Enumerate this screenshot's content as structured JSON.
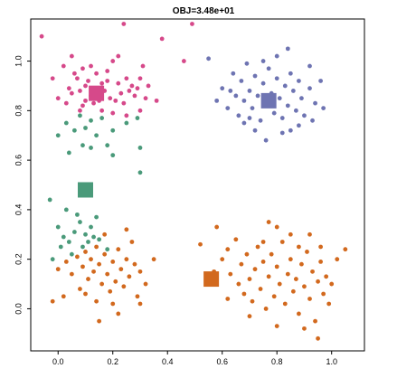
{
  "chart_data": {
    "type": "scatter",
    "title": "OBJ=3.48e+01",
    "xlabel": "",
    "ylabel": "",
    "xlim": [
      -0.1,
      1.12
    ],
    "ylim": [
      -0.17,
      1.17
    ],
    "x_ticks": [
      0.0,
      0.2,
      0.4,
      0.6,
      0.8,
      1.0
    ],
    "x_tick_labels": [
      "0.0",
      "0.2",
      "0.4",
      "0.6",
      "0.8",
      "1.0"
    ],
    "y_ticks": [
      0.0,
      0.2,
      0.4,
      0.6,
      0.8,
      1.0
    ],
    "y_tick_labels": [
      "0.0",
      "0.2",
      "0.4",
      "0.6",
      "0.8",
      "1.0"
    ],
    "grid": false,
    "legend": "none",
    "clusters": [
      {
        "color": "#d6498a",
        "centroid": [
          0.14,
          0.87
        ],
        "points": [
          [
            -0.06,
            1.1
          ],
          [
            0.02,
            0.98
          ],
          [
            0.05,
            1.02
          ],
          [
            0.06,
            0.95
          ],
          [
            0.07,
            0.93
          ],
          [
            0.08,
            0.88
          ],
          [
            0.09,
            0.97
          ],
          [
            0.1,
            0.9
          ],
          [
            0.1,
            0.84
          ],
          [
            0.11,
            0.92
          ],
          [
            0.12,
            0.86
          ],
          [
            0.13,
            0.83
          ],
          [
            0.14,
            0.95
          ],
          [
            0.15,
            0.89
          ],
          [
            0.16,
            0.91
          ],
          [
            0.17,
            0.88
          ],
          [
            0.18,
            0.92
          ],
          [
            0.19,
            0.85
          ],
          [
            0.2,
            1.0
          ],
          [
            0.22,
            1.02
          ],
          [
            0.23,
            0.87
          ],
          [
            0.24,
            0.83
          ],
          [
            0.25,
            0.93
          ],
          [
            0.27,
            0.9
          ],
          [
            0.28,
            0.86
          ],
          [
            0.3,
            0.93
          ],
          [
            0.32,
            0.85
          ],
          [
            0.33,
            0.9
          ],
          [
            0.0,
            0.85
          ],
          [
            0.03,
            0.83
          ],
          [
            0.04,
            0.89
          ],
          [
            -0.02,
            0.93
          ],
          [
            0.08,
            0.8
          ],
          [
            0.16,
            0.8
          ],
          [
            0.2,
            0.79
          ],
          [
            0.25,
            0.78
          ],
          [
            0.3,
            0.8
          ],
          [
            0.12,
            0.98
          ],
          [
            0.18,
            0.96
          ],
          [
            0.22,
            0.91
          ],
          [
            0.26,
            0.88
          ],
          [
            0.05,
            0.87
          ],
          [
            0.09,
            0.82
          ],
          [
            0.15,
            0.84
          ],
          [
            0.21,
            0.84
          ],
          [
            0.29,
            0.89
          ],
          [
            0.24,
            1.15
          ],
          [
            0.36,
            0.84
          ],
          [
            0.49,
            1.15
          ],
          [
            0.38,
            1.09
          ],
          [
            0.46,
            1.0
          ],
          [
            0.31,
            0.98
          ]
        ]
      },
      {
        "color": "#4a9a7a",
        "centroid": [
          0.1,
          0.48
        ],
        "points": [
          [
            0.0,
            0.7
          ],
          [
            0.03,
            0.75
          ],
          [
            0.06,
            0.72
          ],
          [
            0.08,
            0.78
          ],
          [
            0.1,
            0.73
          ],
          [
            0.12,
            0.76
          ],
          [
            0.14,
            0.7
          ],
          [
            0.16,
            0.77
          ],
          [
            0.2,
            0.72
          ],
          [
            0.25,
            0.75
          ],
          [
            0.29,
            0.77
          ],
          [
            0.09,
            0.66
          ],
          [
            0.12,
            0.65
          ],
          [
            0.18,
            0.66
          ],
          [
            0.3,
            0.65
          ],
          [
            0.04,
            0.63
          ],
          [
            0.2,
            0.62
          ],
          [
            0.3,
            0.55
          ],
          [
            0.0,
            0.33
          ],
          [
            0.02,
            0.29
          ],
          [
            0.04,
            0.27
          ],
          [
            0.06,
            0.31
          ],
          [
            0.08,
            0.35
          ],
          [
            0.1,
            0.3
          ],
          [
            0.11,
            0.27
          ],
          [
            0.12,
            0.33
          ],
          [
            0.13,
            0.29
          ],
          [
            0.14,
            0.37
          ],
          [
            0.05,
            0.22
          ],
          [
            0.09,
            0.25
          ],
          [
            0.07,
            0.38
          ],
          [
            0.03,
            0.4
          ],
          [
            -0.03,
            0.44
          ],
          [
            0.18,
            0.24
          ],
          [
            -0.02,
            0.2
          ],
          [
            0.01,
            0.25
          ],
          [
            0.15,
            0.28
          ]
        ]
      },
      {
        "color": "#d2691e",
        "centroid": [
          0.56,
          0.12
        ],
        "points": [
          [
            0.0,
            0.16
          ],
          [
            0.03,
            0.19
          ],
          [
            0.05,
            0.14
          ],
          [
            0.07,
            0.21
          ],
          [
            0.09,
            0.17
          ],
          [
            0.1,
            0.23
          ],
          [
            0.11,
            0.12
          ],
          [
            0.12,
            0.2
          ],
          [
            0.13,
            0.15
          ],
          [
            0.14,
            0.25
          ],
          [
            0.15,
            0.18
          ],
          [
            0.16,
            0.1
          ],
          [
            0.17,
            0.22
          ],
          [
            0.18,
            0.14
          ],
          [
            0.19,
            0.07
          ],
          [
            0.2,
            0.19
          ],
          [
            0.21,
            0.11
          ],
          [
            0.22,
            0.24
          ],
          [
            0.23,
            0.16
          ],
          [
            0.24,
            0.09
          ],
          [
            0.25,
            0.2
          ],
          [
            0.26,
            0.13
          ],
          [
            0.27,
            0.27
          ],
          [
            0.28,
            0.18
          ],
          [
            0.29,
            0.05
          ],
          [
            0.3,
            0.15
          ],
          [
            0.32,
            0.1
          ],
          [
            0.08,
            0.08
          ],
          [
            0.1,
            0.06
          ],
          [
            0.14,
            0.03
          ],
          [
            0.2,
            0.02
          ],
          [
            0.02,
            0.05
          ],
          [
            -0.02,
            0.03
          ],
          [
            0.22,
            -0.02
          ],
          [
            0.15,
            -0.05
          ],
          [
            0.3,
            0.02
          ],
          [
            0.35,
            0.2
          ],
          [
            0.17,
            0.3
          ],
          [
            0.25,
            0.32
          ],
          [
            0.52,
            0.26
          ],
          [
            0.58,
            0.33
          ],
          [
            0.6,
            0.2
          ],
          [
            0.62,
            0.24
          ],
          [
            0.63,
            0.14
          ],
          [
            0.65,
            0.28
          ],
          [
            0.66,
            0.1
          ],
          [
            0.67,
            0.18
          ],
          [
            0.68,
            0.06
          ],
          [
            0.69,
            0.22
          ],
          [
            0.7,
            0.12
          ],
          [
            0.71,
            0.03
          ],
          [
            0.72,
            0.16
          ],
          [
            0.73,
            0.25
          ],
          [
            0.74,
            0.08
          ],
          [
            0.75,
            0.19
          ],
          [
            0.76,
            0.0
          ],
          [
            0.77,
            0.13
          ],
          [
            0.78,
            0.22
          ],
          [
            0.79,
            0.05
          ],
          [
            0.8,
            0.17
          ],
          [
            0.81,
            0.1
          ],
          [
            0.82,
            0.27
          ],
          [
            0.83,
            0.02
          ],
          [
            0.84,
            0.14
          ],
          [
            0.85,
            0.2
          ],
          [
            0.86,
            0.07
          ],
          [
            0.87,
            0.12
          ],
          [
            0.88,
            -0.02
          ],
          [
            0.89,
            0.18
          ],
          [
            0.9,
            0.09
          ],
          [
            0.91,
            0.23
          ],
          [
            0.92,
            0.04
          ],
          [
            0.93,
            0.15
          ],
          [
            0.94,
            -0.05
          ],
          [
            0.95,
            0.11
          ],
          [
            0.96,
            0.19
          ],
          [
            0.97,
            0.06
          ],
          [
            0.98,
            0.13
          ],
          [
            0.99,
            0.02
          ],
          [
            1.0,
            0.1
          ],
          [
            0.77,
            0.35
          ],
          [
            0.8,
            0.33
          ],
          [
            0.85,
            0.3
          ],
          [
            0.92,
            0.3
          ],
          [
            0.96,
            0.25
          ],
          [
            1.02,
            0.2
          ],
          [
            1.05,
            0.24
          ],
          [
            0.7,
            -0.03
          ],
          [
            0.8,
            -0.07
          ],
          [
            0.95,
            -0.12
          ],
          [
            0.62,
            0.04
          ],
          [
            0.75,
            0.27
          ],
          [
            0.88,
            0.25
          ],
          [
            0.9,
            -0.08
          ],
          [
            0.57,
            0.15
          ]
        ]
      },
      {
        "color": "#6e74b2",
        "centroid": [
          0.77,
          0.84
        ],
        "points": [
          [
            0.55,
            1.01
          ],
          [
            0.6,
            0.89
          ],
          [
            0.62,
            0.81
          ],
          [
            0.64,
            0.95
          ],
          [
            0.65,
            0.86
          ],
          [
            0.66,
            0.78
          ],
          [
            0.67,
            0.92
          ],
          [
            0.68,
            0.84
          ],
          [
            0.69,
            0.99
          ],
          [
            0.7,
            0.88
          ],
          [
            0.71,
            0.81
          ],
          [
            0.72,
            0.94
          ],
          [
            0.73,
            0.86
          ],
          [
            0.74,
            0.76
          ],
          [
            0.75,
            0.91
          ],
          [
            0.76,
            0.83
          ],
          [
            0.77,
            0.97
          ],
          [
            0.78,
            0.87
          ],
          [
            0.79,
            0.79
          ],
          [
            0.8,
            0.93
          ],
          [
            0.81,
            0.85
          ],
          [
            0.82,
            0.77
          ],
          [
            0.83,
            0.9
          ],
          [
            0.84,
            0.82
          ],
          [
            0.85,
            0.95
          ],
          [
            0.86,
            0.88
          ],
          [
            0.87,
            0.8
          ],
          [
            0.88,
            0.92
          ],
          [
            0.89,
            0.85
          ],
          [
            0.9,
            0.78
          ],
          [
            0.92,
            0.89
          ],
          [
            0.94,
            0.83
          ],
          [
            0.96,
            0.92
          ],
          [
            0.72,
            0.72
          ],
          [
            0.76,
            0.68
          ],
          [
            0.82,
            0.71
          ],
          [
            0.88,
            0.74
          ],
          [
            0.68,
            0.75
          ],
          [
            0.8,
            1.02
          ],
          [
            0.84,
            1.05
          ],
          [
            0.75,
            1.0
          ],
          [
            0.92,
            0.98
          ],
          [
            0.97,
            0.81
          ],
          [
            0.58,
            0.84
          ],
          [
            0.63,
            0.88
          ],
          [
            0.7,
            0.77
          ],
          [
            0.85,
            0.72
          ],
          [
            0.93,
            0.76
          ]
        ]
      }
    ]
  }
}
